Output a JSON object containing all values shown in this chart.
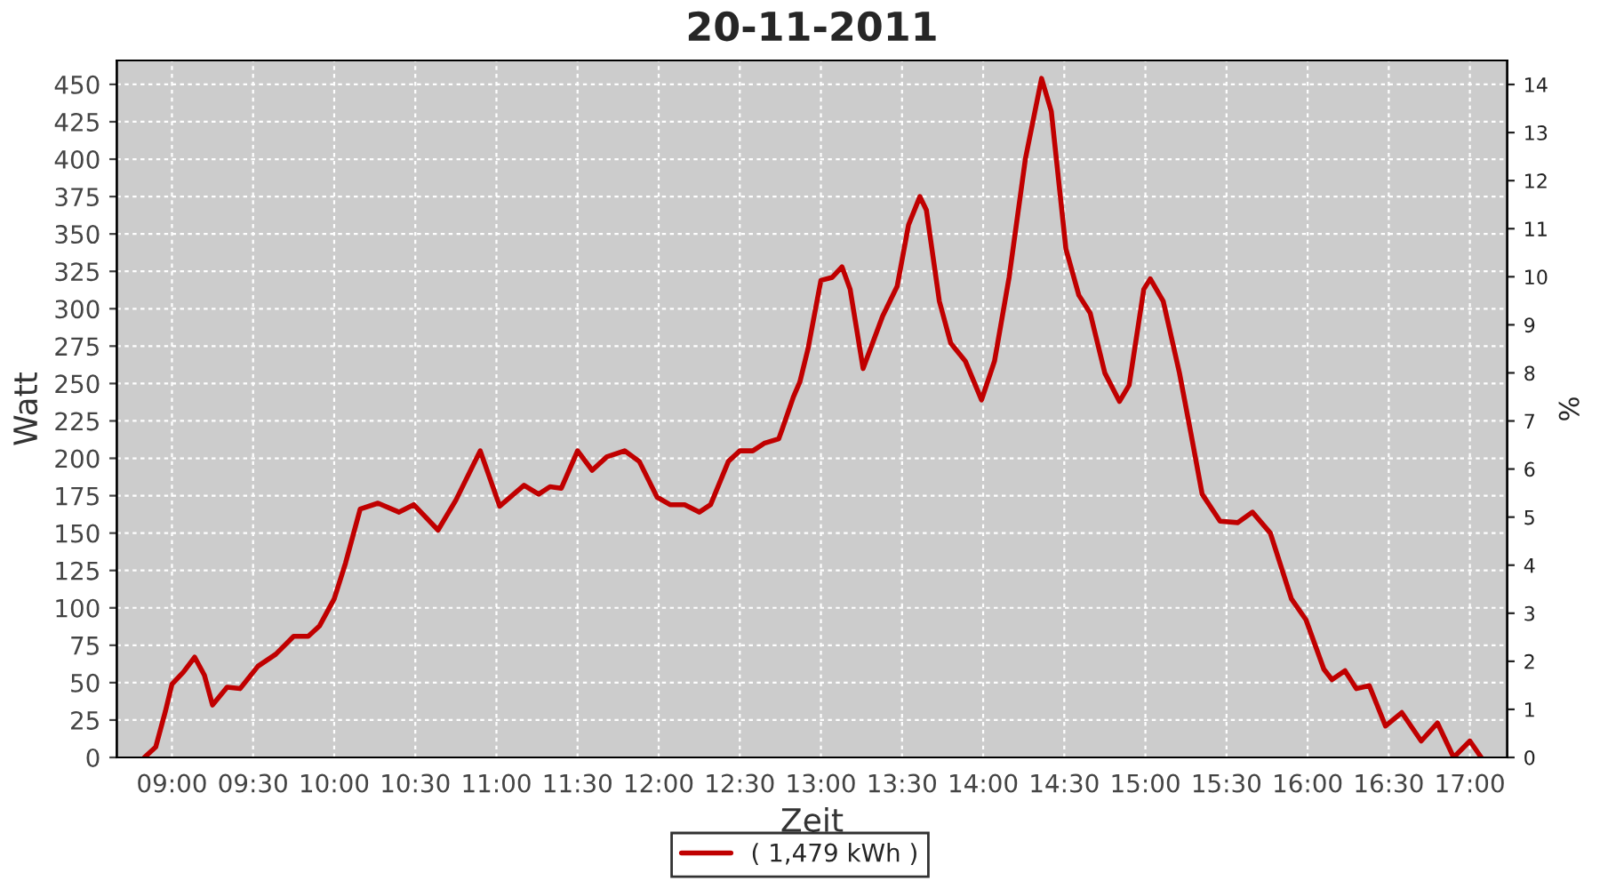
{
  "chart_data": {
    "type": "line",
    "title": "20-11-2011",
    "xlabel": "Zeit",
    "ylabel": "Watt",
    "y2label": "%",
    "series": [
      {
        "name": "( 1,479 kWh )",
        "color": "#c00000",
        "x": [
          8.83,
          8.9,
          8.96,
          9.0,
          9.07,
          9.14,
          9.2,
          9.25,
          9.34,
          9.42,
          9.53,
          9.64,
          9.75,
          9.84,
          9.91,
          10.0,
          10.07,
          10.16,
          10.27,
          10.4,
          10.49,
          10.64,
          10.75,
          10.9,
          11.02,
          11.17,
          11.26,
          11.33,
          11.4,
          11.5,
          11.59,
          11.68,
          11.79,
          11.88,
          11.99,
          12.07,
          12.16,
          12.25,
          12.32,
          12.43,
          12.5,
          12.58,
          12.65,
          12.74,
          12.76,
          12.83,
          12.87,
          12.92,
          13.0,
          13.07,
          13.13,
          13.18,
          13.26,
          13.38,
          13.47,
          13.54,
          13.61,
          13.65,
          13.73,
          13.8,
          13.89,
          13.99,
          14.07,
          14.16,
          14.26,
          14.36,
          14.42,
          14.51,
          14.59,
          14.66,
          14.75,
          14.84,
          14.9,
          14.99,
          15.03,
          15.11,
          15.21,
          15.28,
          15.35,
          15.46,
          15.57,
          15.66,
          15.77,
          15.9,
          15.99,
          16.1,
          16.15,
          16.23,
          16.3,
          16.38,
          16.48,
          16.58,
          16.7,
          16.8,
          16.9,
          17.0,
          17.07
        ],
        "values": [
          0,
          7,
          31,
          49,
          57,
          67,
          55,
          35,
          47,
          46,
          61,
          69,
          81,
          81,
          88,
          106,
          130,
          166,
          170,
          164,
          169,
          152,
          172,
          205,
          168,
          182,
          176,
          181,
          180,
          205,
          192,
          201,
          205,
          198,
          174,
          169,
          169,
          164,
          169,
          198,
          205,
          205,
          210,
          213,
          219,
          241,
          251,
          273,
          319,
          321,
          328,
          313,
          260,
          295,
          315,
          356,
          375,
          366,
          305,
          277,
          265,
          239,
          265,
          321,
          400,
          454,
          432,
          340,
          309,
          297,
          257,
          238,
          249,
          313,
          320,
          305,
          257,
          217,
          176,
          158,
          157,
          164,
          150,
          106,
          92,
          59,
          52,
          58,
          46,
          48,
          21,
          30,
          11,
          23,
          0,
          11,
          0
        ]
      }
    ],
    "xlim": [
      8.66,
      17.23
    ],
    "xticks": [
      {
        "value": 9,
        "label": "09:00"
      },
      {
        "value": 9.5,
        "label": "09:30"
      },
      {
        "value": 10,
        "label": "10:00"
      },
      {
        "value": 10.5,
        "label": "10:30"
      },
      {
        "value": 11,
        "label": "11:00"
      },
      {
        "value": 11.5,
        "label": "11:30"
      },
      {
        "value": 12,
        "label": "12:00"
      },
      {
        "value": 12.5,
        "label": "12:30"
      },
      {
        "value": 13,
        "label": "13:00"
      },
      {
        "value": 13.5,
        "label": "13:30"
      },
      {
        "value": 14,
        "label": "14:00"
      },
      {
        "value": 14.5,
        "label": "14:30"
      },
      {
        "value": 15,
        "label": "15:00"
      },
      {
        "value": 15.5,
        "label": "15:30"
      },
      {
        "value": 16,
        "label": "16:00"
      },
      {
        "value": 16.5,
        "label": "16:30"
      },
      {
        "value": 17,
        "label": "17:00"
      }
    ],
    "ylim": [
      0,
      466
    ],
    "yticks": [
      0,
      25,
      50,
      75,
      100,
      125,
      150,
      175,
      200,
      225,
      250,
      275,
      300,
      325,
      350,
      375,
      400,
      425,
      450
    ],
    "y2lim": [
      0,
      14.5
    ],
    "y2ticks": [
      0,
      1,
      2,
      3,
      4,
      5,
      6,
      7,
      8,
      9,
      10,
      11,
      12,
      13,
      14
    ],
    "grid": true,
    "legend": "bottom",
    "marker": "none",
    "line_style": "solid"
  }
}
